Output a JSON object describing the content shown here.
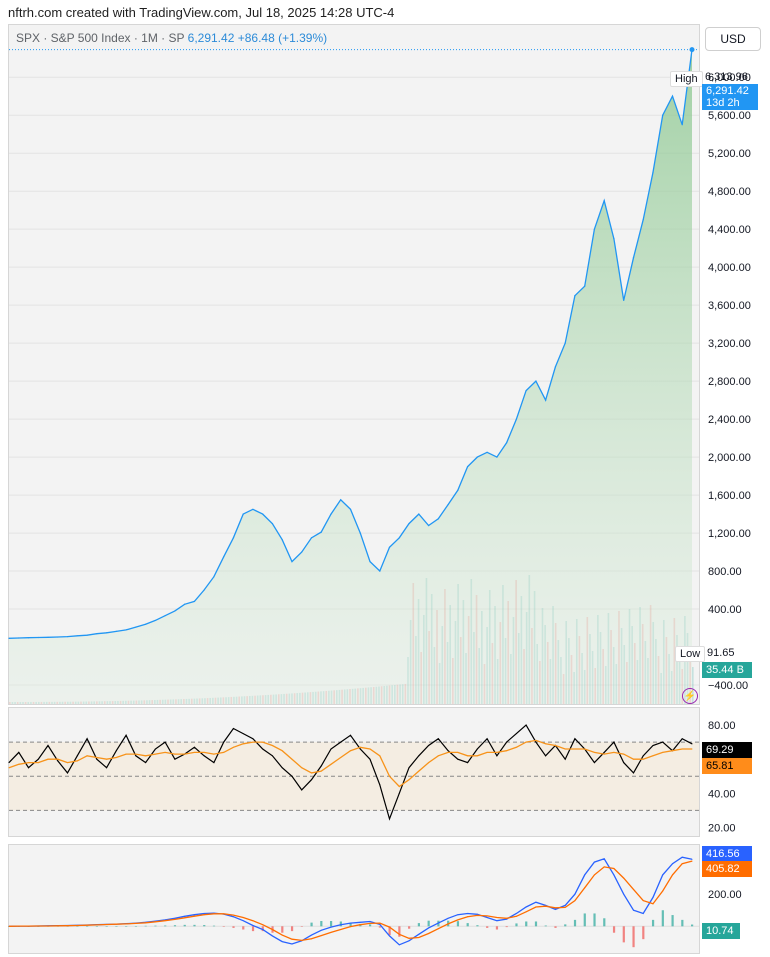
{
  "attribution": "nftrh.com created with TradingView.com, Jul 18, 2025 14:28 UTC-4",
  "header": {
    "symbol_text": "SPX · S&P 500 Index · 1M · SP",
    "last": "6,291.42",
    "change": "+86.48 (+1.39%)",
    "currency": "USD"
  },
  "labels": {
    "high_tag": "High",
    "high_value": "6,313.96",
    "last_price": "6,291.42",
    "countdown": "13d 2h",
    "low_tag": "Low",
    "low_value": "91.65",
    "volume_value": "35.44 B",
    "rsi_value": "69.29",
    "rsi_ma_value": "65.81",
    "macd_value": "416.56",
    "signal_value": "405.82",
    "hist_value": "10.74"
  },
  "colors": {
    "price_line": "#2196f3",
    "rsi_line": "#000000",
    "rsi_ma": "#f7931a",
    "macd_line": "#2962ff",
    "signal_line": "#ff6d00",
    "hist_pos": "#26a69a",
    "hist_neg": "#ef5350",
    "label_blue": "#2196f3",
    "label_teal": "#26a69a",
    "label_orange": "#ff8c1a"
  },
  "chart_data": [
    {
      "type": "area",
      "series": [
        {
          "name": "SPX",
          "values": [
            92,
            95,
            98,
            100,
            102,
            105,
            110,
            118,
            125,
            140,
            150,
            165,
            180,
            210,
            240,
            280,
            330,
            380,
            450,
            480,
            600,
            740,
            950,
            1150,
            1400,
            1450,
            1400,
            1300,
            1130,
            900,
            1000,
            1150,
            1210,
            1400,
            1550,
            1450,
            1200,
            900,
            800,
            1050,
            1150,
            1300,
            1400,
            1280,
            1350,
            1500,
            1650,
            1900,
            2000,
            2050,
            2000,
            2150,
            2400,
            2700,
            2800,
            2600,
            2950,
            3200,
            3700,
            3800,
            4400,
            4700,
            4300,
            3650,
            4100,
            4500,
            5000,
            5600,
            5800,
            5500,
            6291
          ]
        }
      ],
      "y_ticks": [
        -400,
        400,
        800,
        1200,
        1600,
        2000,
        2400,
        2800,
        3200,
        3600,
        4000,
        4400,
        4800,
        5200,
        5600,
        6000
      ],
      "ylim": [
        -600,
        6550
      ]
    },
    {
      "type": "line",
      "series": [
        {
          "name": "RSI",
          "values": [
            58,
            64,
            55,
            60,
            68,
            59,
            52,
            62,
            72,
            60,
            55,
            65,
            74,
            62,
            58,
            66,
            70,
            60,
            63,
            67,
            62,
            58,
            70,
            78,
            75,
            72,
            66,
            62,
            55,
            50,
            42,
            48,
            56,
            66,
            70,
            74,
            66,
            60,
            45,
            25,
            40,
            55,
            62,
            68,
            72,
            65,
            60,
            58,
            66,
            72,
            62,
            70,
            75,
            80,
            70,
            62,
            68,
            60,
            72,
            66,
            58,
            64,
            70,
            58,
            52,
            62,
            68,
            70,
            65,
            72,
            69
          ]
        },
        {
          "name": "RSI MA",
          "values": [
            55,
            57,
            58,
            58,
            60,
            60,
            58,
            59,
            62,
            61,
            60,
            61,
            63,
            63,
            62,
            63,
            64,
            63,
            63,
            64,
            64,
            63,
            64,
            67,
            69,
            70,
            70,
            68,
            65,
            60,
            55,
            52,
            53,
            57,
            61,
            65,
            67,
            66,
            62,
            50,
            44,
            48,
            53,
            58,
            62,
            64,
            64,
            62,
            62,
            64,
            64,
            65,
            67,
            70,
            71,
            69,
            68,
            66,
            66,
            66,
            64,
            63,
            64,
            63,
            60,
            60,
            62,
            64,
            65,
            66,
            66
          ]
        }
      ],
      "y_ticks": [
        20,
        40,
        80
      ],
      "ylim": [
        15,
        90
      ]
    },
    {
      "type": "line",
      "series": [
        {
          "name": "MACD",
          "values": [
            0,
            1,
            1,
            2,
            3,
            4,
            5,
            6,
            8,
            10,
            12,
            14,
            16,
            20,
            25,
            32,
            40,
            50,
            62,
            72,
            80,
            82,
            76,
            60,
            35,
            5,
            -20,
            -60,
            -95,
            -110,
            -90,
            -55,
            -25,
            -5,
            10,
            20,
            25,
            30,
            12,
            -60,
            -115,
            -90,
            -50,
            -10,
            20,
            50,
            72,
            80,
            75,
            55,
            35,
            45,
            80,
            120,
            150,
            130,
            105,
            130,
            200,
            320,
            400,
            420,
            320,
            200,
            100,
            80,
            180,
            320,
            390,
            430,
            417
          ]
        },
        {
          "name": "Signal",
          "values": [
            0,
            1,
            1,
            2,
            2,
            3,
            4,
            5,
            7,
            9,
            11,
            13,
            15,
            18,
            22,
            28,
            35,
            43,
            53,
            63,
            72,
            78,
            78,
            70,
            55,
            35,
            10,
            -20,
            -55,
            -80,
            -88,
            -78,
            -58,
            -38,
            -20,
            -2,
            10,
            18,
            20,
            -5,
            -50,
            -75,
            -70,
            -45,
            -15,
            15,
            40,
            60,
            68,
            65,
            55,
            50,
            62,
            90,
            120,
            125,
            115,
            118,
            160,
            240,
            320,
            370,
            360,
            300,
            230,
            160,
            140,
            220,
            320,
            390,
            406
          ]
        },
        {
          "name": "Histogram",
          "values": [
            0,
            0,
            0,
            0,
            1,
            1,
            1,
            1,
            1,
            1,
            1,
            1,
            1,
            2,
            3,
            4,
            5,
            7,
            9,
            9,
            8,
            4,
            -2,
            -10,
            -20,
            -30,
            -30,
            -40,
            -40,
            -30,
            -2,
            23,
            33,
            33,
            30,
            22,
            15,
            12,
            -8,
            -55,
            -65,
            -15,
            20,
            35,
            35,
            35,
            32,
            20,
            7,
            -10,
            -20,
            -5,
            18,
            30,
            30,
            5,
            -10,
            12,
            40,
            80,
            80,
            50,
            -40,
            -100,
            -130,
            -80,
            40,
            100,
            70,
            40,
            11
          ]
        }
      ],
      "y_ticks": [
        200
      ],
      "ylim": [
        -160,
        500
      ]
    }
  ]
}
